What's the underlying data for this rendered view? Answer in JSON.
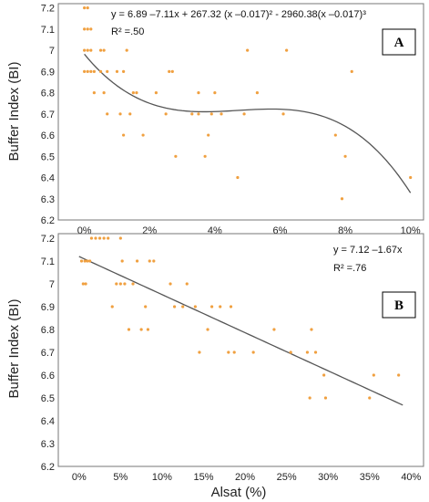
{
  "chart_data": [
    {
      "type": "scatter",
      "panel_label": "A",
      "equation": "y = 6.89 –7.11x + 267.32 (x –0.017)² - 2960.38(x –0.017)³",
      "r_squared": "R² =.50",
      "ylabel": "Buffer Index (BI)",
      "xlim": [
        -0.008,
        0.104
      ],
      "ylim": [
        6.2,
        7.22
      ],
      "x_ticks": [
        0,
        0.02,
        0.04,
        0.06,
        0.08,
        0.1
      ],
      "x_tick_labels": [
        "0%",
        "2%",
        "4%",
        "6%",
        "8%",
        "10%"
      ],
      "y_ticks": [
        6.2,
        6.3,
        6.4,
        6.5,
        6.6,
        6.7,
        6.8,
        6.9,
        7.0,
        7.1,
        7.2
      ],
      "y_tick_labels": [
        "6.2",
        "6.3",
        "6.4",
        "6.5",
        "6.6",
        "6.7",
        "6.8",
        "6.9",
        "7",
        "7.1",
        "7.2"
      ],
      "grid": false,
      "point_color": "#f0a040",
      "fit_color": "#555555",
      "fit": {
        "kind": "cubic",
        "a": 6.89,
        "b": -7.11,
        "c": 267.32,
        "d": -2960.38,
        "x0": 0.017,
        "x_range": [
          0,
          0.1
        ]
      },
      "points": [
        [
          0.0,
          7.2
        ],
        [
          0.001,
          7.2
        ],
        [
          0.0,
          7.1
        ],
        [
          0.001,
          7.1
        ],
        [
          0.002,
          7.1
        ],
        [
          0.0,
          7.0
        ],
        [
          0.001,
          7.0
        ],
        [
          0.002,
          7.0
        ],
        [
          0.0,
          6.9
        ],
        [
          0.001,
          6.9
        ],
        [
          0.002,
          6.9
        ],
        [
          0.003,
          6.9
        ],
        [
          0.003,
          6.8
        ],
        [
          0.005,
          6.9
        ],
        [
          0.005,
          7.0
        ],
        [
          0.006,
          7.0
        ],
        [
          0.006,
          6.8
        ],
        [
          0.007,
          6.9
        ],
        [
          0.007,
          6.7
        ],
        [
          0.01,
          6.9
        ],
        [
          0.011,
          6.7
        ],
        [
          0.012,
          6.9
        ],
        [
          0.012,
          6.6
        ],
        [
          0.013,
          7.0
        ],
        [
          0.014,
          6.7
        ],
        [
          0.015,
          6.8
        ],
        [
          0.016,
          6.8
        ],
        [
          0.018,
          6.6
        ],
        [
          0.022,
          6.8
        ],
        [
          0.025,
          6.7
        ],
        [
          0.026,
          6.9
        ],
        [
          0.027,
          6.9
        ],
        [
          0.028,
          6.5
        ],
        [
          0.033,
          6.7
        ],
        [
          0.035,
          6.8
        ],
        [
          0.035,
          6.7
        ],
        [
          0.037,
          6.5
        ],
        [
          0.038,
          6.6
        ],
        [
          0.039,
          6.7
        ],
        [
          0.04,
          6.8
        ],
        [
          0.042,
          6.7
        ],
        [
          0.047,
          6.4
        ],
        [
          0.049,
          6.7
        ],
        [
          0.05,
          7.0
        ],
        [
          0.053,
          6.8
        ],
        [
          0.061,
          6.7
        ],
        [
          0.062,
          7.0
        ],
        [
          0.077,
          6.6
        ],
        [
          0.079,
          6.3
        ],
        [
          0.08,
          6.5
        ],
        [
          0.082,
          6.9
        ],
        [
          0.1,
          6.4
        ]
      ]
    },
    {
      "type": "scatter",
      "panel_label": "B",
      "equation": "y = 7.12 –1.67x",
      "r_squared": "R² =.76",
      "ylabel": "Buffer Index (BI)",
      "xlabel": "Alsat (%)",
      "xlim": [
        -0.025,
        0.415
      ],
      "ylim": [
        6.2,
        7.22
      ],
      "x_ticks": [
        0,
        0.05,
        0.1,
        0.15,
        0.2,
        0.25,
        0.3,
        0.35,
        0.4
      ],
      "x_tick_labels": [
        "0%",
        "5%",
        "10%",
        "15%",
        "20%",
        "25%",
        "30%",
        "35%",
        "40%"
      ],
      "y_ticks": [
        6.2,
        6.3,
        6.4,
        6.5,
        6.6,
        6.7,
        6.8,
        6.9,
        7.0,
        7.1,
        7.2
      ],
      "y_tick_labels": [
        "6.2",
        "6.3",
        "6.4",
        "6.5",
        "6.6",
        "6.7",
        "6.8",
        "6.9",
        "7",
        "7.1",
        "7.2"
      ],
      "grid": false,
      "point_color": "#f0a040",
      "fit_color": "#555555",
      "fit": {
        "kind": "linear",
        "a": 7.12,
        "b": -1.67,
        "x_range": [
          0.0,
          0.39
        ]
      },
      "points": [
        [
          0.003,
          7.1
        ],
        [
          0.005,
          7.0
        ],
        [
          0.007,
          7.1
        ],
        [
          0.008,
          7.0
        ],
        [
          0.01,
          7.1
        ],
        [
          0.013,
          7.1
        ],
        [
          0.015,
          7.2
        ],
        [
          0.02,
          7.2
        ],
        [
          0.025,
          7.2
        ],
        [
          0.03,
          7.2
        ],
        [
          0.035,
          7.2
        ],
        [
          0.04,
          6.9
        ],
        [
          0.045,
          7.0
        ],
        [
          0.05,
          7.2
        ],
        [
          0.05,
          7.0
        ],
        [
          0.052,
          7.1
        ],
        [
          0.055,
          7.0
        ],
        [
          0.06,
          6.8
        ],
        [
          0.065,
          7.0
        ],
        [
          0.07,
          7.1
        ],
        [
          0.075,
          6.8
        ],
        [
          0.08,
          6.9
        ],
        [
          0.083,
          6.8
        ],
        [
          0.085,
          7.1
        ],
        [
          0.09,
          7.1
        ],
        [
          0.11,
          7.0
        ],
        [
          0.115,
          6.9
        ],
        [
          0.125,
          6.9
        ],
        [
          0.13,
          7.0
        ],
        [
          0.14,
          6.9
        ],
        [
          0.145,
          6.7
        ],
        [
          0.155,
          6.8
        ],
        [
          0.16,
          6.9
        ],
        [
          0.17,
          6.9
        ],
        [
          0.18,
          6.7
        ],
        [
          0.183,
          6.9
        ],
        [
          0.187,
          6.7
        ],
        [
          0.21,
          6.7
        ],
        [
          0.235,
          6.8
        ],
        [
          0.255,
          6.7
        ],
        [
          0.275,
          6.7
        ],
        [
          0.278,
          6.5
        ],
        [
          0.28,
          6.8
        ],
        [
          0.285,
          6.7
        ],
        [
          0.295,
          6.6
        ],
        [
          0.297,
          6.5
        ],
        [
          0.35,
          6.5
        ],
        [
          0.355,
          6.6
        ],
        [
          0.385,
          6.6
        ]
      ]
    }
  ]
}
